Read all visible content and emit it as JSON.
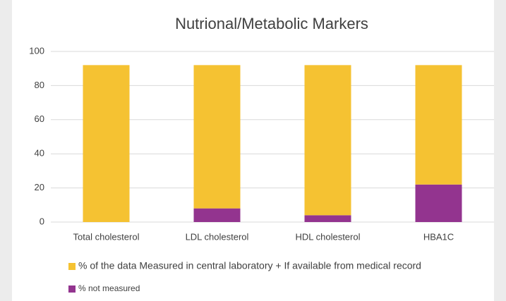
{
  "chart_data": {
    "type": "stacked_bar",
    "title": "Nutrional/Metabolic Markers",
    "categories": [
      "Total cholesterol",
      "LDL cholesterol",
      "HDL cholesterol",
      "HBA1C"
    ],
    "series": [
      {
        "name": "% of the data Measured in central laboratory + If available from medical record",
        "color": "#f5c232",
        "values": [
          92,
          84,
          88,
          70
        ]
      },
      {
        "name": "% not measured",
        "color": "#93348f",
        "values": [
          0,
          8,
          4,
          22
        ]
      }
    ],
    "ylim": [
      0,
      100
    ],
    "yticks": [
      0,
      20,
      40,
      60,
      80,
      100
    ],
    "grid": true,
    "legend": "bottom"
  }
}
